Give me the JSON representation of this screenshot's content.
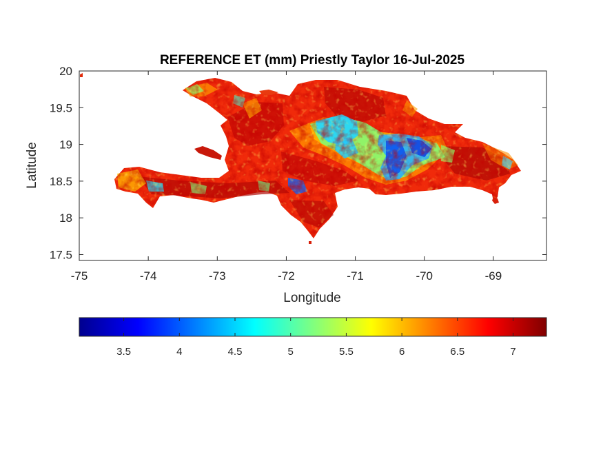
{
  "map": {
    "title": "REFERENCE ET (mm) Priestly Taylor 16-Jul-2025",
    "xlabel": "Longitude",
    "ylabel": "Latitude",
    "x_ticks": [
      "-75",
      "-74",
      "-73",
      "-72",
      "-71",
      "-70",
      "-69"
    ],
    "y_ticks": [
      "20",
      "19.5",
      "19",
      "18.5",
      "18",
      "17.5"
    ],
    "colorbar_ticks": [
      "3.5",
      "4",
      "4.5",
      "5",
      "5.5",
      "6",
      "6.5",
      "7"
    ],
    "colormap": "jet"
  },
  "chart_data": {
    "type": "heatmap",
    "title": "REFERENCE ET (mm) Priestly Taylor 16-Jul-2025",
    "xlabel": "Longitude",
    "ylabel": "Latitude",
    "xlim": [
      -75,
      -68.23
    ],
    "ylim": [
      17.42,
      20
    ],
    "x_ticks": [
      -75,
      -74,
      -73,
      -72,
      -71,
      -70,
      -69
    ],
    "y_ticks": [
      17.5,
      18,
      18.5,
      19,
      19.5,
      20
    ],
    "colorbar": {
      "range": [
        3.1,
        7.3
      ],
      "ticks": [
        3.5,
        4,
        4.5,
        5,
        5.5,
        6,
        6.5,
        7
      ],
      "colormap": "jet"
    }
  }
}
